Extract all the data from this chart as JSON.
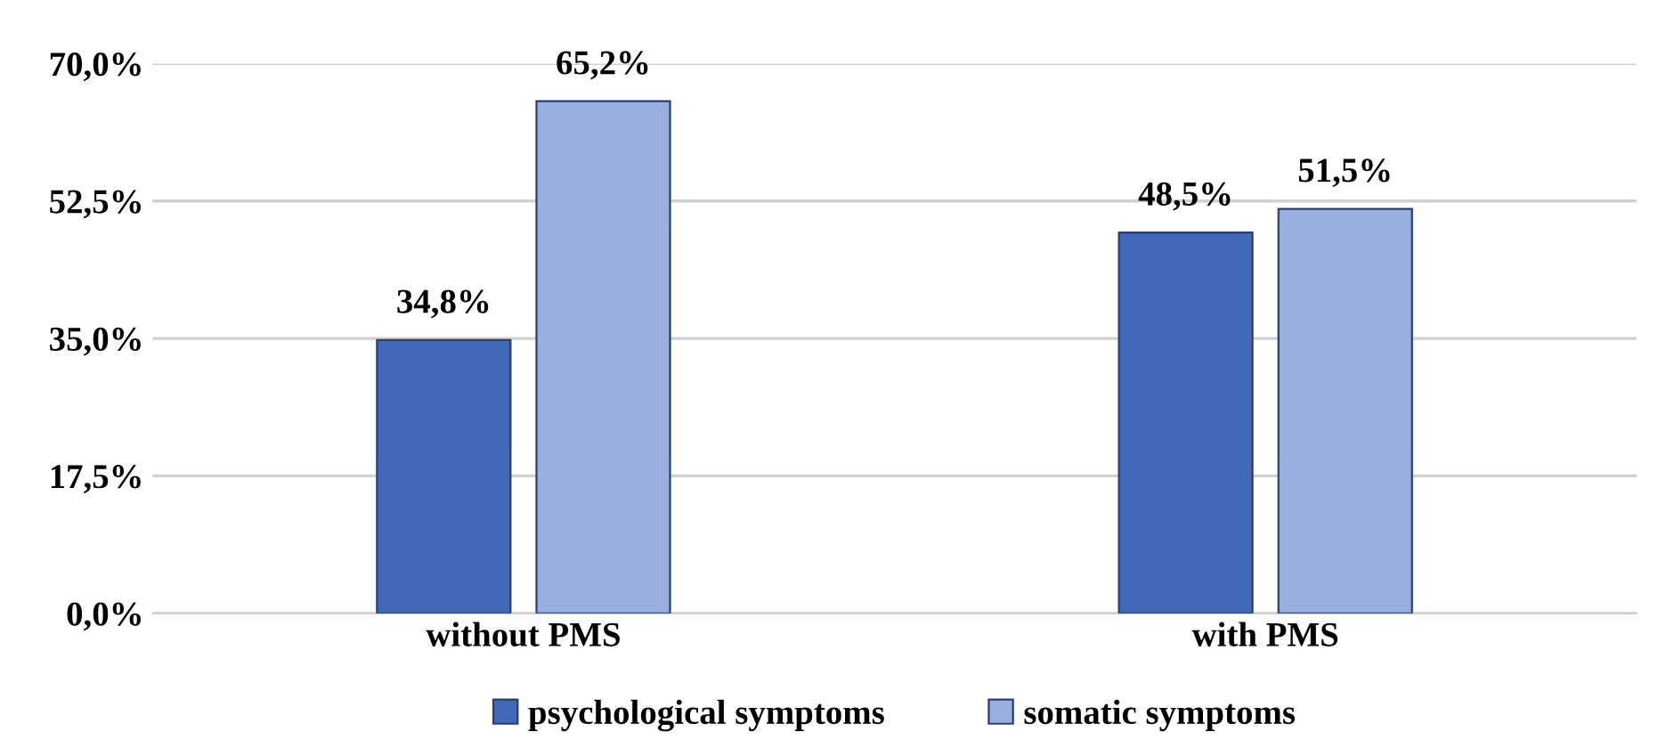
{
  "chart_data": {
    "type": "bar",
    "categories": [
      "without PMS",
      "with PMS"
    ],
    "series": [
      {
        "name": "psychological symptoms",
        "color": "#4169b8",
        "values": [
          34.8,
          48.5
        ],
        "value_labels": [
          "34,8%",
          "48,5%"
        ]
      },
      {
        "name": "somatic symptoms",
        "color": "#9aaee0",
        "values": [
          65.2,
          51.5
        ],
        "value_labels": [
          "65,2%",
          "51,5%"
        ]
      }
    ],
    "ylim": [
      0,
      70
    ],
    "yticks": [
      {
        "value": 0,
        "label": "0,0%"
      },
      {
        "value": 17.5,
        "label": "17,5%"
      },
      {
        "value": 35,
        "label": "35,0%"
      },
      {
        "value": 52.5,
        "label": "52,5%"
      },
      {
        "value": 70,
        "label": "70,0%"
      }
    ],
    "grid": "y",
    "legend": "bottom"
  }
}
